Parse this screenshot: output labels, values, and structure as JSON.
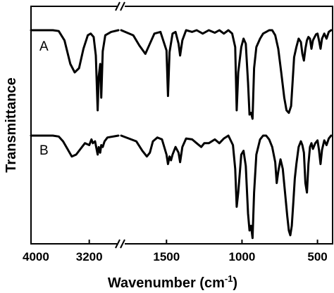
{
  "chart_data": {
    "type": "line",
    "xlabel": "Wavenumber (cm",
    "xlabel_sup": "-1",
    "xlabel_end": ")",
    "ylabel": "Transmittance",
    "axis_break": [
      2800,
      1800
    ],
    "x_direction": "reversed",
    "xticks": [
      {
        "value": 4000,
        "label": "4000"
      },
      {
        "value": 3200,
        "label": "3200"
      },
      {
        "value": 1500,
        "label": "1500"
      },
      {
        "value": 1000,
        "label": "1000"
      },
      {
        "value": 500,
        "label": "500"
      }
    ],
    "series": [
      {
        "name": "A",
        "points": [
          [
            4000,
            0.0
          ],
          [
            3700,
            0.0
          ],
          [
            3620,
            0.01
          ],
          [
            3540,
            0.12
          ],
          [
            3460,
            0.4
          ],
          [
            3400,
            0.5
          ],
          [
            3340,
            0.45
          ],
          [
            3280,
            0.22
          ],
          [
            3220,
            0.06
          ],
          [
            3180,
            0.04
          ],
          [
            3140,
            0.08
          ],
          [
            3110,
            0.3
          ],
          [
            3085,
            0.95
          ],
          [
            3070,
            0.55
          ],
          [
            3050,
            0.4
          ],
          [
            3035,
            0.8
          ],
          [
            3015,
            0.25
          ],
          [
            2980,
            0.06
          ],
          [
            2900,
            0.02
          ],
          [
            2800,
            0.0
          ],
          [
            1800,
            0.0
          ],
          [
            1720,
            0.06
          ],
          [
            1680,
            0.18
          ],
          [
            1640,
            0.28
          ],
          [
            1610,
            0.16
          ],
          [
            1580,
            0.04
          ],
          [
            1540,
            0.02
          ],
          [
            1500,
            0.24
          ],
          [
            1490,
            0.78
          ],
          [
            1480,
            0.26
          ],
          [
            1460,
            0.04
          ],
          [
            1440,
            0.02
          ],
          [
            1420,
            0.16
          ],
          [
            1410,
            0.3
          ],
          [
            1395,
            0.12
          ],
          [
            1370,
            0.0
          ],
          [
            1330,
            0.02
          ],
          [
            1300,
            0.0
          ],
          [
            1260,
            0.04
          ],
          [
            1220,
            0.0
          ],
          [
            1180,
            0.03
          ],
          [
            1150,
            0.0
          ],
          [
            1120,
            0.04
          ],
          [
            1090,
            0.0
          ],
          [
            1065,
            0.04
          ],
          [
            1045,
            0.2
          ],
          [
            1035,
            0.95
          ],
          [
            1025,
            0.5
          ],
          [
            1005,
            0.2
          ],
          [
            990,
            0.1
          ],
          [
            975,
            0.16
          ],
          [
            960,
            0.62
          ],
          [
            950,
            1.0
          ],
          [
            940,
            0.98
          ],
          [
            930,
            1.05
          ],
          [
            920,
            0.45
          ],
          [
            905,
            0.2
          ],
          [
            880,
            0.1
          ],
          [
            860,
            0.04
          ],
          [
            840,
            0.02
          ],
          [
            820,
            0.0
          ],
          [
            800,
            0.0
          ],
          [
            780,
            0.06
          ],
          [
            760,
            0.22
          ],
          [
            740,
            0.5
          ],
          [
            720,
            0.8
          ],
          [
            705,
            0.95
          ],
          [
            690,
            0.98
          ],
          [
            675,
            0.9
          ],
          [
            665,
            0.62
          ],
          [
            655,
            0.32
          ],
          [
            640,
            0.2
          ],
          [
            625,
            0.1
          ],
          [
            610,
            0.14
          ],
          [
            600,
            0.28
          ],
          [
            590,
            0.36
          ],
          [
            580,
            0.22
          ],
          [
            570,
            0.12
          ],
          [
            560,
            0.08
          ],
          [
            550,
            0.1
          ],
          [
            540,
            0.22
          ],
          [
            530,
            0.12
          ],
          [
            510,
            0.05
          ],
          [
            500,
            0.04
          ],
          [
            490,
            0.12
          ],
          [
            480,
            0.22
          ],
          [
            470,
            0.1
          ],
          [
            455,
            0.04
          ],
          [
            440,
            0.1
          ],
          [
            425,
            0.02
          ],
          [
            410,
            0.0
          ]
        ]
      },
      {
        "name": "B",
        "points": [
          [
            4000,
            0.0
          ],
          [
            3700,
            0.0
          ],
          [
            3620,
            0.01
          ],
          [
            3560,
            0.06
          ],
          [
            3500,
            0.14
          ],
          [
            3440,
            0.22
          ],
          [
            3380,
            0.2
          ],
          [
            3320,
            0.14
          ],
          [
            3260,
            0.08
          ],
          [
            3200,
            0.1
          ],
          [
            3170,
            0.04
          ],
          [
            3150,
            0.08
          ],
          [
            3120,
            0.06
          ],
          [
            3085,
            0.2
          ],
          [
            3070,
            0.12
          ],
          [
            3050,
            0.18
          ],
          [
            3035,
            0.1
          ],
          [
            3015,
            0.12
          ],
          [
            2990,
            0.06
          ],
          [
            2950,
            0.02
          ],
          [
            2800,
            0.0
          ],
          [
            1800,
            0.0
          ],
          [
            1700,
            0.06
          ],
          [
            1660,
            0.16
          ],
          [
            1630,
            0.22
          ],
          [
            1610,
            0.18
          ],
          [
            1590,
            0.06
          ],
          [
            1560,
            0.02
          ],
          [
            1530,
            0.04
          ],
          [
            1500,
            0.2
          ],
          [
            1490,
            0.3
          ],
          [
            1480,
            0.22
          ],
          [
            1470,
            0.26
          ],
          [
            1460,
            0.2
          ],
          [
            1440,
            0.12
          ],
          [
            1420,
            0.18
          ],
          [
            1410,
            0.28
          ],
          [
            1395,
            0.12
          ],
          [
            1370,
            0.03
          ],
          [
            1330,
            0.04
          ],
          [
            1300,
            0.08
          ],
          [
            1270,
            0.12
          ],
          [
            1250,
            0.08
          ],
          [
            1220,
            0.08
          ],
          [
            1180,
            0.04
          ],
          [
            1150,
            0.08
          ],
          [
            1120,
            0.03
          ],
          [
            1090,
            0.0
          ],
          [
            1060,
            0.1
          ],
          [
            1045,
            0.35
          ],
          [
            1035,
            0.75
          ],
          [
            1025,
            0.6
          ],
          [
            1005,
            0.2
          ],
          [
            990,
            0.16
          ],
          [
            975,
            0.32
          ],
          [
            960,
            0.82
          ],
          [
            950,
            1.0
          ],
          [
            940,
            0.95
          ],
          [
            930,
            1.08
          ],
          [
            920,
            0.6
          ],
          [
            905,
            0.2
          ],
          [
            880,
            0.04
          ],
          [
            860,
            0.0
          ],
          [
            840,
            0.0
          ],
          [
            820,
            0.04
          ],
          [
            800,
            0.12
          ],
          [
            780,
            0.28
          ],
          [
            770,
            0.5
          ],
          [
            760,
            0.38
          ],
          [
            745,
            0.25
          ],
          [
            730,
            0.35
          ],
          [
            715,
            0.6
          ],
          [
            700,
            0.85
          ],
          [
            690,
            1.0
          ],
          [
            680,
            1.05
          ],
          [
            670,
            0.95
          ],
          [
            660,
            0.7
          ],
          [
            650,
            0.45
          ],
          [
            640,
            0.3
          ],
          [
            625,
            0.12
          ],
          [
            610,
            0.06
          ],
          [
            600,
            0.1
          ],
          [
            590,
            0.18
          ],
          [
            580,
            0.5
          ],
          [
            570,
            0.6
          ],
          [
            560,
            0.3
          ],
          [
            550,
            0.12
          ],
          [
            540,
            0.08
          ],
          [
            530,
            0.14
          ],
          [
            515,
            0.08
          ],
          [
            500,
            0.05
          ],
          [
            490,
            0.15
          ],
          [
            480,
            0.3
          ],
          [
            470,
            0.15
          ],
          [
            455,
            0.05
          ],
          [
            440,
            0.1
          ],
          [
            425,
            0.03
          ],
          [
            410,
            0.0
          ]
        ]
      }
    ],
    "legend": "labels-left-of-traces",
    "grid": false
  }
}
